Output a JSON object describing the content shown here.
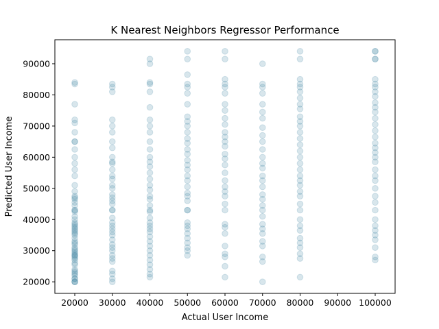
{
  "chart_data": {
    "type": "scatter",
    "title": "K Nearest Neighbors Regressor Performance",
    "xlabel": "Actual User Income",
    "ylabel": "Predicted User Income",
    "xlim": [
      14700,
      105300
    ],
    "ylim": [
      16300,
      97700
    ],
    "xticks": [
      20000,
      30000,
      40000,
      50000,
      60000,
      70000,
      80000,
      90000,
      100000
    ],
    "yticks": [
      20000,
      30000,
      40000,
      50000,
      60000,
      70000,
      80000,
      90000
    ],
    "grid": false,
    "marker_color": "#3a82a0",
    "marker_alpha": 0.2,
    "series": [
      {
        "points": [
          [
            20000,
            20000
          ],
          [
            20000,
            20000
          ],
          [
            20000,
            20000
          ],
          [
            20000,
            21000
          ],
          [
            20000,
            21000
          ],
          [
            20000,
            22000
          ],
          [
            20000,
            22500
          ],
          [
            20000,
            23000
          ],
          [
            20000,
            23500
          ],
          [
            20000,
            24000
          ],
          [
            20000,
            25500
          ],
          [
            20000,
            26000
          ],
          [
            20000,
            27000
          ],
          [
            20000,
            27500
          ],
          [
            20000,
            28000
          ],
          [
            20000,
            28500
          ],
          [
            20000,
            28500
          ],
          [
            20000,
            29000
          ],
          [
            20000,
            29500
          ],
          [
            20000,
            30000
          ],
          [
            20000,
            30500
          ],
          [
            20000,
            31000
          ],
          [
            20000,
            32000
          ],
          [
            20000,
            32500
          ],
          [
            20000,
            33000
          ],
          [
            20000,
            34000
          ],
          [
            20000,
            35000
          ],
          [
            20000,
            35500
          ],
          [
            20000,
            36000
          ],
          [
            20000,
            36500
          ],
          [
            20000,
            37000
          ],
          [
            20000,
            37500
          ],
          [
            20000,
            38000
          ],
          [
            20000,
            38500
          ],
          [
            20000,
            39000
          ],
          [
            20000,
            40000
          ],
          [
            20000,
            41000
          ],
          [
            20000,
            42500
          ],
          [
            20000,
            43000
          ],
          [
            20000,
            43000
          ],
          [
            20000,
            44500
          ],
          [
            20000,
            45500
          ],
          [
            20000,
            46500
          ],
          [
            20000,
            47000
          ],
          [
            20000,
            47500
          ],
          [
            20000,
            49000
          ],
          [
            20000,
            51000
          ],
          [
            20000,
            54000
          ],
          [
            20000,
            56000
          ],
          [
            20000,
            58000
          ],
          [
            20000,
            60000
          ],
          [
            20000,
            62500
          ],
          [
            20000,
            65000
          ],
          [
            20000,
            65000
          ],
          [
            20000,
            68000
          ],
          [
            20000,
            71000
          ],
          [
            20000,
            72000
          ],
          [
            20000,
            77000
          ],
          [
            20000,
            83500
          ],
          [
            20000,
            84000
          ],
          [
            30000,
            20000
          ],
          [
            30000,
            21000
          ],
          [
            30000,
            22500
          ],
          [
            30000,
            23500
          ],
          [
            30000,
            26500
          ],
          [
            30000,
            27500
          ],
          [
            30000,
            28500
          ],
          [
            30000,
            30000
          ],
          [
            30000,
            31000
          ],
          [
            30000,
            32000
          ],
          [
            30000,
            33500
          ],
          [
            30000,
            35000
          ],
          [
            30000,
            36000
          ],
          [
            30000,
            37000
          ],
          [
            30000,
            38000
          ],
          [
            30000,
            39000
          ],
          [
            30000,
            40500
          ],
          [
            30000,
            43000
          ],
          [
            30000,
            43000
          ],
          [
            30000,
            45000
          ],
          [
            30000,
            46000
          ],
          [
            30000,
            47000
          ],
          [
            30000,
            48000
          ],
          [
            30000,
            50000
          ],
          [
            30000,
            51000
          ],
          [
            30000,
            53000
          ],
          [
            30000,
            54000
          ],
          [
            30000,
            56000
          ],
          [
            30000,
            58000
          ],
          [
            30000,
            58500
          ],
          [
            30000,
            60000
          ],
          [
            30000,
            63000
          ],
          [
            30000,
            65000
          ],
          [
            30000,
            68000
          ],
          [
            30000,
            70000
          ],
          [
            30000,
            72000
          ],
          [
            30000,
            81000
          ],
          [
            30000,
            82500
          ],
          [
            30000,
            83500
          ],
          [
            40000,
            21500
          ],
          [
            40000,
            22500
          ],
          [
            40000,
            24000
          ],
          [
            40000,
            25500
          ],
          [
            40000,
            27000
          ],
          [
            40000,
            28500
          ],
          [
            40000,
            30000
          ],
          [
            40000,
            31500
          ],
          [
            40000,
            33000
          ],
          [
            40000,
            34500
          ],
          [
            40000,
            36000
          ],
          [
            40000,
            37000
          ],
          [
            40000,
            38000
          ],
          [
            40000,
            39000
          ],
          [
            40000,
            40500
          ],
          [
            40000,
            42500
          ],
          [
            40000,
            43000
          ],
          [
            40000,
            44500
          ],
          [
            40000,
            46500
          ],
          [
            40000,
            47500
          ],
          [
            40000,
            49500
          ],
          [
            40000,
            51000
          ],
          [
            40000,
            53000
          ],
          [
            40000,
            55000
          ],
          [
            40000,
            57000
          ],
          [
            40000,
            58500
          ],
          [
            40000,
            60000
          ],
          [
            40000,
            62500
          ],
          [
            40000,
            65000
          ],
          [
            40000,
            68000
          ],
          [
            40000,
            70000
          ],
          [
            40000,
            72000
          ],
          [
            40000,
            76000
          ],
          [
            40000,
            81000
          ],
          [
            40000,
            83500
          ],
          [
            40000,
            84000
          ],
          [
            40000,
            90000
          ],
          [
            40000,
            91500
          ],
          [
            50000,
            28500
          ],
          [
            50000,
            30000
          ],
          [
            50000,
            31000
          ],
          [
            50000,
            32500
          ],
          [
            50000,
            34000
          ],
          [
            50000,
            35500
          ],
          [
            50000,
            37000
          ],
          [
            50000,
            38000
          ],
          [
            50000,
            39000
          ],
          [
            50000,
            43000
          ],
          [
            50000,
            43000
          ],
          [
            50000,
            46000
          ],
          [
            50000,
            47500
          ],
          [
            50000,
            48500
          ],
          [
            50000,
            50500
          ],
          [
            50000,
            52500
          ],
          [
            50000,
            54000
          ],
          [
            50000,
            56000
          ],
          [
            50000,
            57500
          ],
          [
            50000,
            59000
          ],
          [
            50000,
            61000
          ],
          [
            50000,
            62500
          ],
          [
            50000,
            64500
          ],
          [
            50000,
            66000
          ],
          [
            50000,
            68000
          ],
          [
            50000,
            70000
          ],
          [
            50000,
            71500
          ],
          [
            50000,
            73000
          ],
          [
            50000,
            77000
          ],
          [
            50000,
            80500
          ],
          [
            50000,
            82500
          ],
          [
            50000,
            83500
          ],
          [
            50000,
            86500
          ],
          [
            50000,
            91500
          ],
          [
            50000,
            94000
          ],
          [
            60000,
            21500
          ],
          [
            60000,
            25000
          ],
          [
            60000,
            28000
          ],
          [
            60000,
            29000
          ],
          [
            60000,
            31500
          ],
          [
            60000,
            35500
          ],
          [
            60000,
            37500
          ],
          [
            60000,
            38500
          ],
          [
            60000,
            43000
          ],
          [
            60000,
            45000
          ],
          [
            60000,
            47500
          ],
          [
            60000,
            49000
          ],
          [
            60000,
            50500
          ],
          [
            60000,
            52500
          ],
          [
            60000,
            55000
          ],
          [
            60000,
            57500
          ],
          [
            60000,
            59500
          ],
          [
            60000,
            61000
          ],
          [
            60000,
            63500
          ],
          [
            60000,
            65000
          ],
          [
            60000,
            66500
          ],
          [
            60000,
            68000
          ],
          [
            60000,
            70500
          ],
          [
            60000,
            72500
          ],
          [
            60000,
            75000
          ],
          [
            60000,
            77000
          ],
          [
            60000,
            80500
          ],
          [
            60000,
            82500
          ],
          [
            60000,
            83500
          ],
          [
            60000,
            85000
          ],
          [
            60000,
            91500
          ],
          [
            60000,
            94000
          ],
          [
            70000,
            20000
          ],
          [
            70000,
            26500
          ],
          [
            70000,
            28000
          ],
          [
            70000,
            31500
          ],
          [
            70000,
            33000
          ],
          [
            70000,
            35500
          ],
          [
            70000,
            37000
          ],
          [
            70000,
            38500
          ],
          [
            70000,
            41000
          ],
          [
            70000,
            43000
          ],
          [
            70000,
            44500
          ],
          [
            70000,
            46500
          ],
          [
            70000,
            48000
          ],
          [
            70000,
            50500
          ],
          [
            70000,
            52500
          ],
          [
            70000,
            54000
          ],
          [
            70000,
            56500
          ],
          [
            70000,
            58000
          ],
          [
            70000,
            60000
          ],
          [
            70000,
            62500
          ],
          [
            70000,
            65000
          ],
          [
            70000,
            67000
          ],
          [
            70000,
            69500
          ],
          [
            70000,
            72500
          ],
          [
            70000,
            74500
          ],
          [
            70000,
            77000
          ],
          [
            70000,
            80500
          ],
          [
            70000,
            82500
          ],
          [
            70000,
            83500
          ],
          [
            70000,
            90000
          ],
          [
            80000,
            21500
          ],
          [
            80000,
            27500
          ],
          [
            80000,
            29000
          ],
          [
            80000,
            31000
          ],
          [
            80000,
            32500
          ],
          [
            80000,
            34000
          ],
          [
            80000,
            36500
          ],
          [
            80000,
            38000
          ],
          [
            80000,
            40000
          ],
          [
            80000,
            43000
          ],
          [
            80000,
            45000
          ],
          [
            80000,
            47500
          ],
          [
            80000,
            49000
          ],
          [
            80000,
            51000
          ],
          [
            80000,
            52500
          ],
          [
            80000,
            54000
          ],
          [
            80000,
            56000
          ],
          [
            80000,
            58000
          ],
          [
            80000,
            60000
          ],
          [
            80000,
            62000
          ],
          [
            80000,
            64000
          ],
          [
            80000,
            66000
          ],
          [
            80000,
            68000
          ],
          [
            80000,
            70000
          ],
          [
            80000,
            71500
          ],
          [
            80000,
            73000
          ],
          [
            80000,
            75500
          ],
          [
            80000,
            77000
          ],
          [
            80000,
            79000
          ],
          [
            80000,
            81000
          ],
          [
            80000,
            82500
          ],
          [
            80000,
            83500
          ],
          [
            80000,
            85000
          ],
          [
            80000,
            91500
          ],
          [
            80000,
            94000
          ],
          [
            100000,
            27000
          ],
          [
            100000,
            28000
          ],
          [
            100000,
            31000
          ],
          [
            100000,
            33500
          ],
          [
            100000,
            35000
          ],
          [
            100000,
            36500
          ],
          [
            100000,
            38000
          ],
          [
            100000,
            40000
          ],
          [
            100000,
            43000
          ],
          [
            100000,
            45500
          ],
          [
            100000,
            47500
          ],
          [
            100000,
            50000
          ],
          [
            100000,
            52500
          ],
          [
            100000,
            54000
          ],
          [
            100000,
            56000
          ],
          [
            100000,
            58500
          ],
          [
            100000,
            60000
          ],
          [
            100000,
            61500
          ],
          [
            100000,
            63000
          ],
          [
            100000,
            64500
          ],
          [
            100000,
            66500
          ],
          [
            100000,
            68500
          ],
          [
            100000,
            70500
          ],
          [
            100000,
            72500
          ],
          [
            100000,
            74500
          ],
          [
            100000,
            76000
          ],
          [
            100000,
            77500
          ],
          [
            100000,
            79500
          ],
          [
            100000,
            81000
          ],
          [
            100000,
            82500
          ],
          [
            100000,
            83500
          ],
          [
            100000,
            85000
          ],
          [
            100000,
            91500
          ],
          [
            100000,
            91500
          ],
          [
            100000,
            94000
          ],
          [
            100000,
            94000
          ]
        ]
      }
    ]
  }
}
